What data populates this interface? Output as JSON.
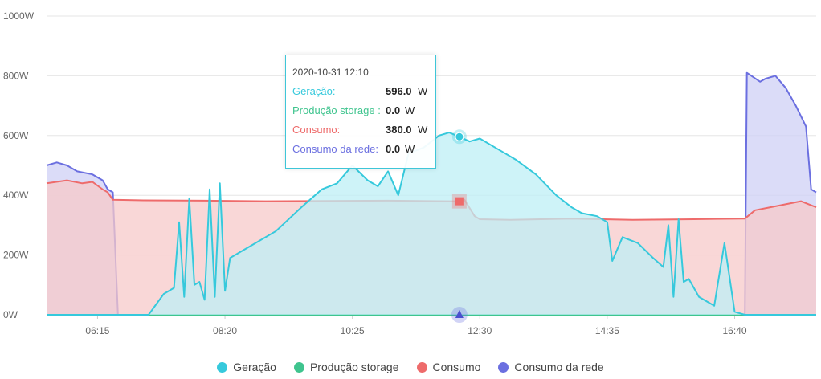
{
  "chart_data": {
    "type": "area",
    "x_ticks": [
      "06:15",
      "08:20",
      "10:25",
      "12:30",
      "14:35",
      "16:40"
    ],
    "y_ticks": [
      "1000W",
      "800W",
      "600W",
      "400W",
      "200W",
      "0W"
    ],
    "ylim": [
      0,
      1000
    ],
    "grid": true,
    "legend_position": "bottom",
    "series": [
      {
        "name": "Geração",
        "color": "#36c9dc",
        "fill": "#bdeff5",
        "points": [
          [
            "05:25",
            0
          ],
          [
            "06:45",
            0
          ],
          [
            "07:05",
            0
          ],
          [
            "07:20",
            70
          ],
          [
            "07:30",
            90
          ],
          [
            "07:35",
            310
          ],
          [
            "07:40",
            60
          ],
          [
            "07:45",
            390
          ],
          [
            "07:50",
            100
          ],
          [
            "07:55",
            110
          ],
          [
            "08:00",
            50
          ],
          [
            "08:05",
            420
          ],
          [
            "08:10",
            60
          ],
          [
            "08:15",
            440
          ],
          [
            "08:20",
            80
          ],
          [
            "08:25",
            190
          ],
          [
            "08:45",
            230
          ],
          [
            "09:10",
            280
          ],
          [
            "09:35",
            360
          ],
          [
            "09:55",
            420
          ],
          [
            "10:10",
            440
          ],
          [
            "10:25",
            500
          ],
          [
            "10:40",
            450
          ],
          [
            "10:50",
            430
          ],
          [
            "11:00",
            480
          ],
          [
            "11:10",
            400
          ],
          [
            "11:20",
            540
          ],
          [
            "11:35",
            560
          ],
          [
            "11:50",
            600
          ],
          [
            "12:00",
            610
          ],
          [
            "12:10",
            596
          ],
          [
            "12:20",
            580
          ],
          [
            "12:30",
            590
          ],
          [
            "12:45",
            560
          ],
          [
            "13:05",
            520
          ],
          [
            "13:25",
            470
          ],
          [
            "13:45",
            400
          ],
          [
            "14:00",
            360
          ],
          [
            "14:10",
            340
          ],
          [
            "14:25",
            330
          ],
          [
            "14:35",
            310
          ],
          [
            "14:40",
            180
          ],
          [
            "14:50",
            260
          ],
          [
            "15:05",
            240
          ],
          [
            "15:20",
            190
          ],
          [
            "15:30",
            160
          ],
          [
            "15:35",
            300
          ],
          [
            "15:40",
            60
          ],
          [
            "15:45",
            320
          ],
          [
            "15:50",
            110
          ],
          [
            "15:55",
            120
          ],
          [
            "16:05",
            60
          ],
          [
            "16:20",
            30
          ],
          [
            "16:30",
            240
          ],
          [
            "16:40",
            10
          ],
          [
            "16:50",
            0
          ],
          [
            "17:00",
            0
          ],
          [
            "18:00",
            0
          ]
        ]
      },
      {
        "name": "Produção storage",
        "color": "#3fc48e",
        "fill": "#bfead7",
        "points": [
          [
            "05:25",
            0
          ],
          [
            "18:00",
            0
          ]
        ]
      },
      {
        "name": "Consumo",
        "color": "#ee6b6b",
        "fill": "#f7caca",
        "points": [
          [
            "05:25",
            440
          ],
          [
            "05:45",
            450
          ],
          [
            "06:00",
            440
          ],
          [
            "06:10",
            445
          ],
          [
            "06:20",
            420
          ],
          [
            "06:25",
            410
          ],
          [
            "06:30",
            385
          ],
          [
            "07:00",
            383
          ],
          [
            "08:00",
            382
          ],
          [
            "09:00",
            380
          ],
          [
            "10:00",
            381
          ],
          [
            "11:00",
            382
          ],
          [
            "12:00",
            380
          ],
          [
            "12:10",
            380
          ],
          [
            "12:15",
            385
          ],
          [
            "12:25",
            330
          ],
          [
            "12:30",
            320
          ],
          [
            "13:00",
            318
          ],
          [
            "14:00",
            322
          ],
          [
            "15:00",
            318
          ],
          [
            "16:00",
            320
          ],
          [
            "16:50",
            322
          ],
          [
            "17:00",
            350
          ],
          [
            "17:15",
            360
          ],
          [
            "17:30",
            370
          ],
          [
            "17:45",
            380
          ],
          [
            "18:00",
            360
          ]
        ]
      },
      {
        "name": "Consumo da rede",
        "color": "#6b6fe0",
        "fill": "#cfd0f5",
        "points": [
          [
            "05:25",
            500
          ],
          [
            "05:35",
            510
          ],
          [
            "05:45",
            500
          ],
          [
            "05:55",
            480
          ],
          [
            "06:10",
            470
          ],
          [
            "06:20",
            450
          ],
          [
            "06:25",
            420
          ],
          [
            "06:30",
            410
          ],
          [
            "06:35",
            0
          ],
          [
            "16:45",
            0
          ],
          [
            "16:50",
            0
          ],
          [
            "16:52",
            810
          ],
          [
            "17:05",
            780
          ],
          [
            "17:10",
            790
          ],
          [
            "17:20",
            800
          ],
          [
            "17:30",
            760
          ],
          [
            "17:40",
            700
          ],
          [
            "17:50",
            630
          ],
          [
            "17:55",
            420
          ],
          [
            "18:00",
            410
          ]
        ]
      }
    ],
    "tooltip": {
      "time": "2020-10-31 12:10",
      "rows": [
        {
          "label": "Geração:",
          "value": "596.0",
          "unit": "W",
          "color": "#36c9dc"
        },
        {
          "label": "Produção storage :",
          "value": "0.0",
          "unit": "W",
          "color": "#3fc48e"
        },
        {
          "label": "Consumo:",
          "value": "380.0",
          "unit": "W",
          "color": "#ee6b6b"
        },
        {
          "label": "Consumo da rede:",
          "value": "0.0",
          "unit": "W",
          "color": "#6b6fe0"
        }
      ]
    }
  },
  "legend": [
    {
      "label": "Geração",
      "color": "#36c9dc"
    },
    {
      "label": "Produção storage",
      "color": "#3fc48e"
    },
    {
      "label": "Consumo",
      "color": "#ee6b6b"
    },
    {
      "label": "Consumo da rede",
      "color": "#6b6fe0"
    }
  ]
}
